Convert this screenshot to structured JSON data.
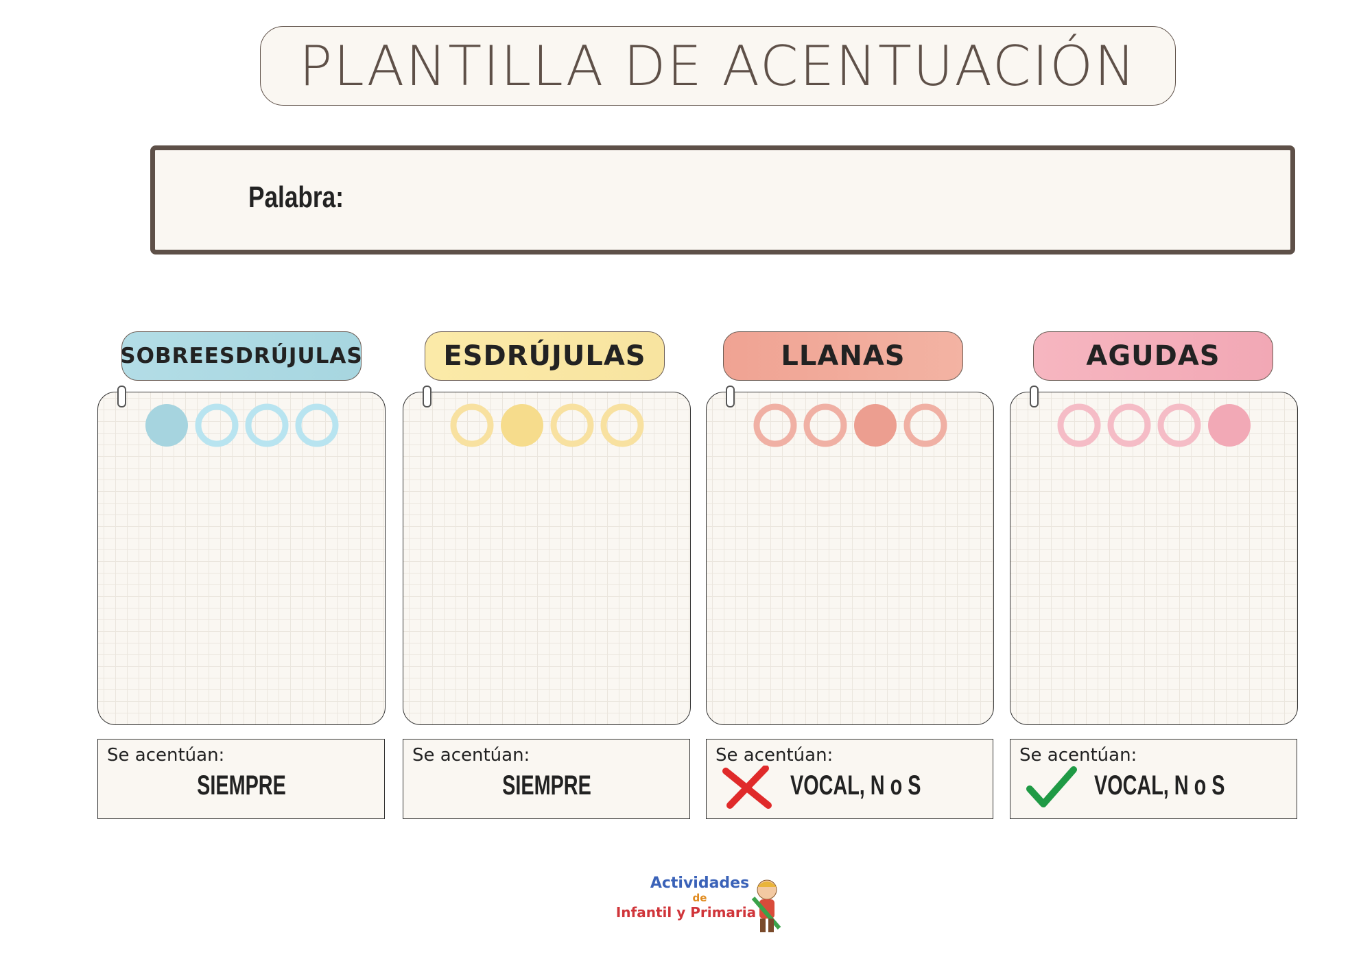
{
  "header": {
    "title": "PLANTILLA DE ACENTUACIÓN"
  },
  "word_box": {
    "label": "Palabra:"
  },
  "columns": [
    {
      "heading": "SOBREESDRÚJULAS",
      "rule_label": "Se acentúan:",
      "rule": "SIEMPRE"
    },
    {
      "heading": "ESDRÚJULAS",
      "rule_label": "Se acentúan:",
      "rule": "SIEMPRE"
    },
    {
      "heading": "LLANAS",
      "rule_label": "Se acentúan:",
      "rule": "VOCAL, N o S"
    },
    {
      "heading": "AGUDAS",
      "rule_label": "Se acentúan:",
      "rule": "VOCAL, N o S"
    }
  ],
  "logo": {
    "line1": "Actividades",
    "line2": "de",
    "line3": "Infantil y Primaria"
  }
}
